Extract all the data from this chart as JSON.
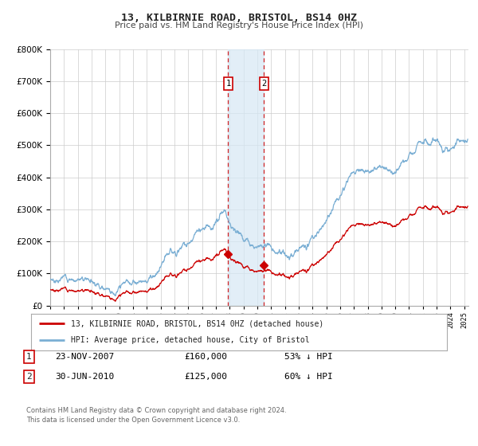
{
  "title": "13, KILBIRNIE ROAD, BRISTOL, BS14 0HZ",
  "subtitle": "Price paid vs. HM Land Registry's House Price Index (HPI)",
  "background_color": "#ffffff",
  "plot_bg_color": "#ffffff",
  "grid_color": "#cccccc",
  "hpi_color": "#7bafd4",
  "price_color": "#cc0000",
  "shade_color": "#d6e8f5",
  "transaction1": {
    "date_num": 2007.896,
    "value": 160000,
    "label": "1"
  },
  "transaction2": {
    "date_num": 2010.496,
    "value": 125000,
    "label": "2"
  },
  "legend_entry1": "13, KILBIRNIE ROAD, BRISTOL, BS14 0HZ (detached house)",
  "legend_entry2": "HPI: Average price, detached house, City of Bristol",
  "table_row1": [
    "1",
    "23-NOV-2007",
    "£160,000",
    "53% ↓ HPI"
  ],
  "table_row2": [
    "2",
    "30-JUN-2010",
    "£125,000",
    "60% ↓ HPI"
  ],
  "footnote": "Contains HM Land Registry data © Crown copyright and database right 2024.\nThis data is licensed under the Open Government Licence v3.0.",
  "ylim": [
    0,
    800000
  ],
  "xlim_start": 1995.0,
  "xlim_end": 2025.3
}
